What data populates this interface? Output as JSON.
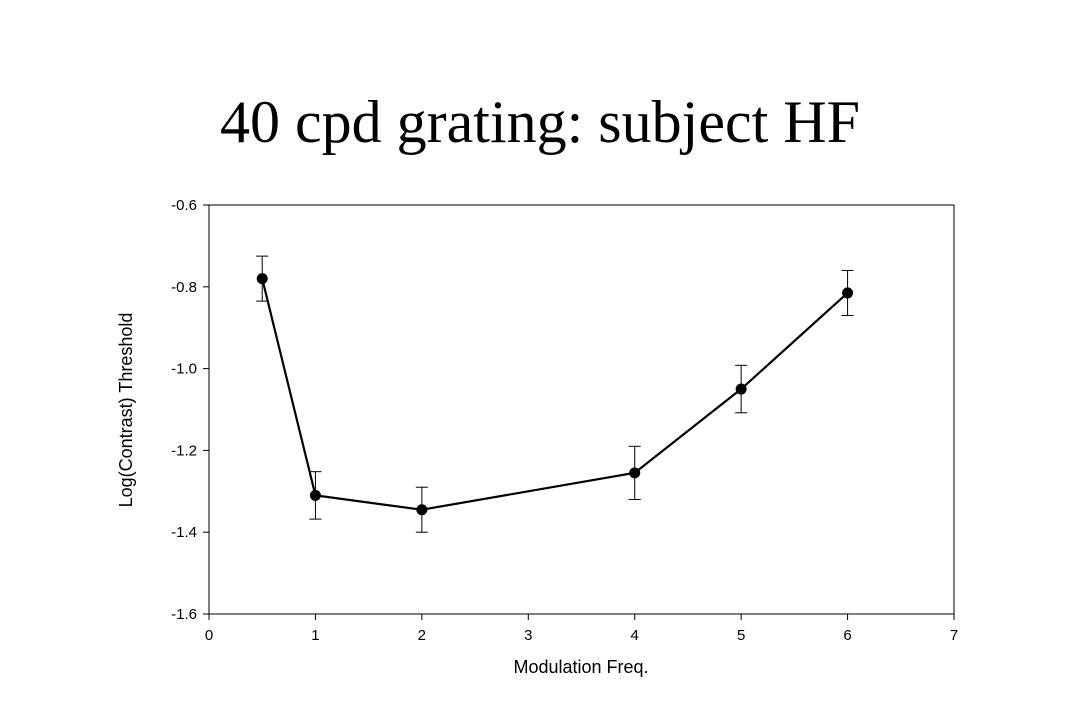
{
  "slide": {
    "title": "40 cpd grating: subject HF"
  },
  "chart_data": {
    "type": "line",
    "xlabel": "Modulation Freq.",
    "ylabel": "Log(Contrast) Threshold",
    "xlim": [
      0,
      7
    ],
    "ylim": [
      -1.6,
      -0.6
    ],
    "x_ticks": [
      0,
      1,
      2,
      3,
      4,
      5,
      6,
      7
    ],
    "y_ticks": [
      -1.6,
      -1.4,
      -1.2,
      -1.0,
      -0.8,
      -0.6
    ],
    "y_tick_labels": [
      "-1.6",
      "-1.4",
      "-1.2",
      "-1.0",
      "-0.8",
      "-0.6"
    ],
    "grid": false,
    "series": [
      {
        "x": [
          0.5,
          1,
          2,
          4,
          5,
          6
        ],
        "y": [
          -0.78,
          -1.31,
          -1.345,
          -1.255,
          -1.05,
          -0.815
        ],
        "error": [
          0.055,
          0.058,
          0.055,
          0.065,
          0.058,
          0.055
        ]
      }
    ],
    "color": "#000000"
  }
}
